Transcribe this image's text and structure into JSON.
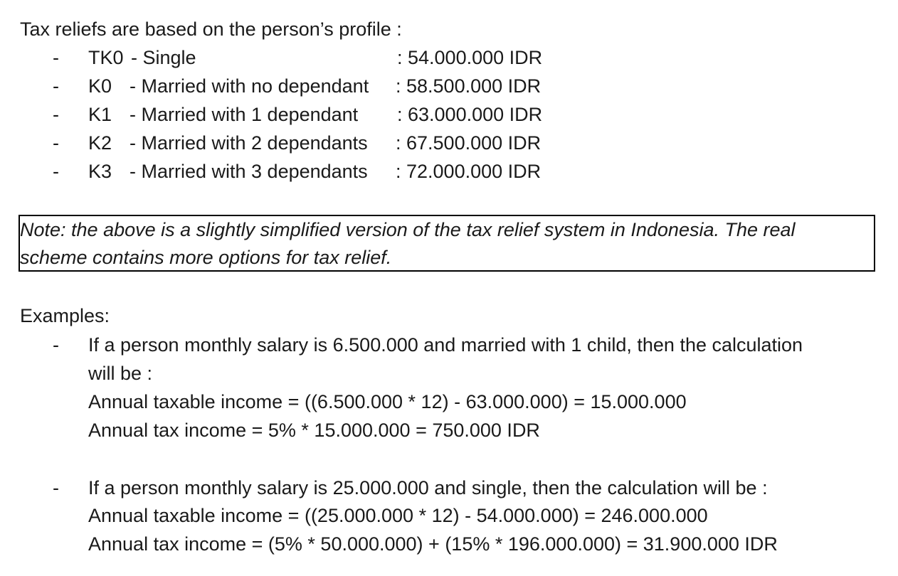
{
  "intro": "Tax reliefs are based on the person’s profile :",
  "bullet_glyph": "-",
  "reliefs": [
    {
      "code": "TK0",
      "desc": "- Single",
      "amount": ": 54.000.000 IDR"
    },
    {
      "code": "K0",
      "desc": "- Married with no dependant",
      "amount": ": 58.500.000 IDR"
    },
    {
      "code": "K1",
      "desc": "- Married with 1 dependant",
      "amount": ": 63.000.000 IDR"
    },
    {
      "code": "K2",
      "desc": "- Married with 2 dependants",
      "amount": ": 67.500.000 IDR"
    },
    {
      "code": "K3",
      "desc": "- Married with 3 dependants",
      "amount": ": 72.000.000 IDR"
    }
  ],
  "note": {
    "line1": "Note: the above is a slightly simplified version of the tax relief system in Indonesia. The real",
    "line2": "scheme contains more options for tax relief."
  },
  "examples_heading": "Examples:",
  "examples": [
    {
      "lines": [
        "If a person monthly salary is 6.500.000 and married with 1 child, then the calculation",
        "will be :",
        "Annual taxable income = ((6.500.000 * 12) - 63.000.000) = 15.000.000",
        "Annual tax income = 5% * 15.000.000 = 750.000 IDR"
      ]
    },
    {
      "lines": [
        "If a person monthly salary is 25.000.000 and single, then the calculation will be :",
        "Annual taxable income = ((25.000.000 * 12) - 54.000.000) = 246.000.000",
        "Annual tax income = (5% * 50.000.000) + (15% * 196.000.000) = 31.900.000 IDR"
      ]
    }
  ]
}
